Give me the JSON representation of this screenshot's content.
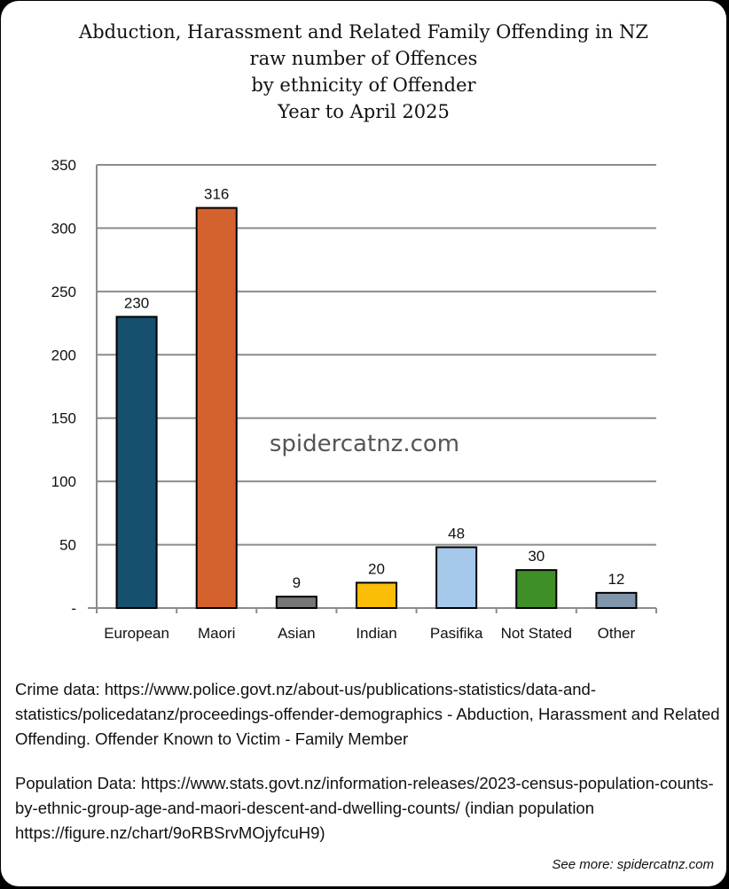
{
  "chart_data": {
    "type": "bar",
    "title_lines": [
      "Abduction, Harassment and Related Family Offending in NZ",
      "raw number of Offences",
      "by ethnicity of Offender",
      "Year to April 2025"
    ],
    "categories": [
      "European",
      "Maori",
      "Asian",
      "Indian",
      "Pasifika",
      "Not Stated",
      "Other"
    ],
    "values": [
      230,
      316,
      9,
      20,
      48,
      30,
      12
    ],
    "colors": [
      "#16506e",
      "#d3622e",
      "#767676",
      "#fbbd08",
      "#a6c8ea",
      "#3f8e27",
      "#8096ab"
    ],
    "ylim": [
      0,
      350
    ],
    "yticks": [
      0,
      50,
      100,
      150,
      200,
      250,
      300,
      350
    ],
    "ytick_labels": [
      "-",
      "50",
      "100",
      "150",
      "200",
      "250",
      "300",
      "350"
    ],
    "grid": true,
    "xlabel": "",
    "ylabel": "",
    "watermark": "spidercatnz.com"
  },
  "notes": {
    "crime": "Crime data: https://www.police.govt.nz/about-us/publications-statistics/data-and-statistics/policedatanz/proceedings-offender-demographics -  Abduction, Harassment and Related Offending. Offender Known to Victim - Family Member",
    "population": "Population Data: https://www.stats.govt.nz/information-releases/2023-census-population-counts-by-ethnic-group-age-and-maori-descent-and-dwelling-counts/ (indian population https://figure.nz/chart/9oRBSrvMOjyfcuH9)"
  },
  "footer": {
    "see_more": "See more: spidercatnz.com"
  }
}
